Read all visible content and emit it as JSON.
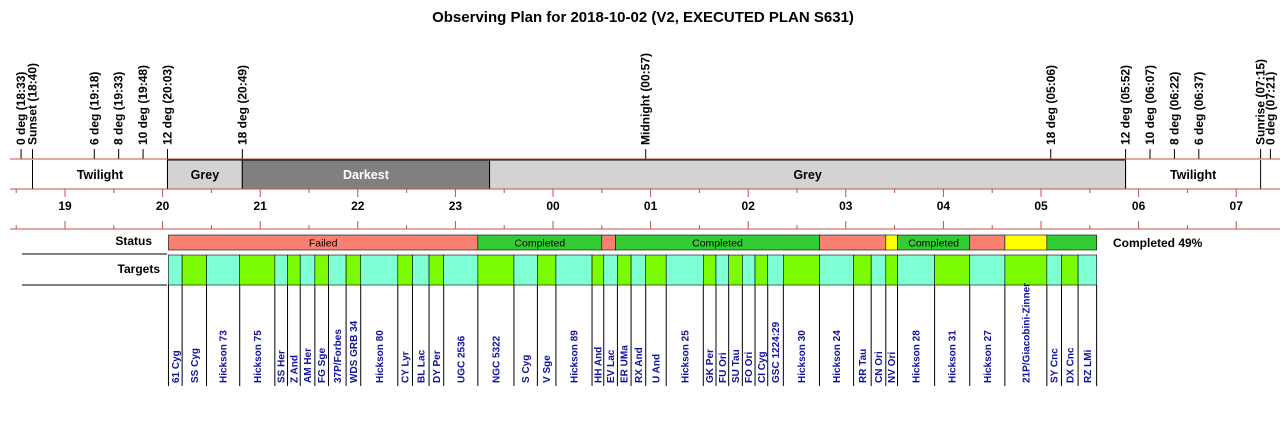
{
  "chart_data": {
    "type": "timeline",
    "title": "Observing Plan for 2018-10-02 (V2, EXECUTED PLAN S631)",
    "axis": {
      "unit": "hour",
      "start": 18.25,
      "end": 31.6
    },
    "hour_ticks": [
      {
        "label": "19",
        "t": 19
      },
      {
        "label": "20",
        "t": 20
      },
      {
        "label": "21",
        "t": 21
      },
      {
        "label": "22",
        "t": 22
      },
      {
        "label": "23",
        "t": 23
      },
      {
        "label": "00",
        "t": 24
      },
      {
        "label": "01",
        "t": 25
      },
      {
        "label": "02",
        "t": 26
      },
      {
        "label": "03",
        "t": 27
      },
      {
        "label": "04",
        "t": 28
      },
      {
        "label": "05",
        "t": 29
      },
      {
        "label": "06",
        "t": 30
      },
      {
        "label": "07",
        "t": 31
      }
    ],
    "events": [
      {
        "label": "0 deg (18:33)",
        "t": 18.55
      },
      {
        "label": "Sunset (18:40)",
        "t": 18.667
      },
      {
        "label": "6 deg (19:18)",
        "t": 19.3
      },
      {
        "label": "8 deg (19:33)",
        "t": 19.55
      },
      {
        "label": "10 deg (19:48)",
        "t": 19.8
      },
      {
        "label": "12 deg (20:03)",
        "t": 20.05
      },
      {
        "label": "18 deg (20:49)",
        "t": 20.817
      },
      {
        "label": "Midnight (00:57)",
        "t": 24.95
      },
      {
        "label": "18 deg (05:06)",
        "t": 29.1
      },
      {
        "label": "12 deg (05:52)",
        "t": 29.867
      },
      {
        "label": "10 deg (06:07)",
        "t": 30.117
      },
      {
        "label": "8 deg (06:22)",
        "t": 30.367
      },
      {
        "label": "6 deg (06:37)",
        "t": 30.617
      },
      {
        "label": "Sunrise (07:15)",
        "t": 31.25
      },
      {
        "label": "0 deg (07:21)",
        "t": 31.35
      }
    ],
    "phases": [
      {
        "label": "",
        "start": 18.25,
        "end": 18.667,
        "color": "#ffffff"
      },
      {
        "label": "Twilight",
        "start": 18.667,
        "end": 20.05,
        "color": "#ffffff"
      },
      {
        "label": "Grey",
        "start": 20.05,
        "end": 20.817,
        "color": "#d3d3d3"
      },
      {
        "label": "Darkest",
        "start": 20.817,
        "end": 23.35,
        "color": "#808080"
      },
      {
        "label": "Grey",
        "start": 23.35,
        "end": 29.867,
        "color": "#d3d3d3"
      },
      {
        "label": "Twilight",
        "start": 29.867,
        "end": 31.25,
        "color": "#ffffff"
      },
      {
        "label": "",
        "start": 31.25,
        "end": 31.6,
        "color": "#ffffff"
      }
    ],
    "status_label": "Status",
    "targets_label": "Targets",
    "status": [
      {
        "label": "Failed",
        "start": 20.06,
        "end": 23.23,
        "color": "#fa8072"
      },
      {
        "label": "Completed",
        "start": 23.23,
        "end": 24.5,
        "color": "#32cd32"
      },
      {
        "label": "",
        "start": 24.5,
        "end": 24.64,
        "color": "#fa8072"
      },
      {
        "label": "Completed",
        "start": 24.64,
        "end": 26.73,
        "color": "#32cd32"
      },
      {
        "label": "",
        "start": 26.73,
        "end": 27.41,
        "color": "#fa8072"
      },
      {
        "label": "",
        "start": 27.41,
        "end": 27.53,
        "color": "#ffff00"
      },
      {
        "label": "Completed",
        "start": 27.53,
        "end": 28.27,
        "color": "#32cd32"
      },
      {
        "label": "",
        "start": 28.27,
        "end": 28.63,
        "color": "#fa8072"
      },
      {
        "label": "",
        "start": 28.63,
        "end": 29.06,
        "color": "#ffff00"
      },
      {
        "label": "",
        "start": 29.06,
        "end": 29.57,
        "color": "#32cd32"
      }
    ],
    "status_summary": "Completed 49%",
    "targets": [
      {
        "name": "61 Cyg",
        "start": 20.06,
        "end": 20.2
      },
      {
        "name": "SS Cyg",
        "start": 20.2,
        "end": 20.45
      },
      {
        "name": "Hickson 73",
        "start": 20.45,
        "end": 20.79
      },
      {
        "name": "Hickson 75",
        "start": 20.79,
        "end": 21.15
      },
      {
        "name": "SS Her",
        "start": 21.15,
        "end": 21.28
      },
      {
        "name": "Z And",
        "start": 21.28,
        "end": 21.41
      },
      {
        "name": "AM Her",
        "start": 21.41,
        "end": 21.56
      },
      {
        "name": "FG Sge",
        "start": 21.56,
        "end": 21.7
      },
      {
        "name": "37P/Forbes",
        "start": 21.7,
        "end": 21.88
      },
      {
        "name": "WDS GRB 34",
        "start": 21.88,
        "end": 22.03
      },
      {
        "name": "Hickson 80",
        "start": 22.03,
        "end": 22.41
      },
      {
        "name": "CY Lyr",
        "start": 22.41,
        "end": 22.56
      },
      {
        "name": "BL Lac",
        "start": 22.56,
        "end": 22.73
      },
      {
        "name": "DY Per",
        "start": 22.73,
        "end": 22.88
      },
      {
        "name": "UGC 2536",
        "start": 22.88,
        "end": 23.23
      },
      {
        "name": "NGC 5322",
        "start": 23.23,
        "end": 23.6
      },
      {
        "name": "S Cyg",
        "start": 23.6,
        "end": 23.84
      },
      {
        "name": "V Sge",
        "start": 23.84,
        "end": 24.03
      },
      {
        "name": "Hickson 89",
        "start": 24.03,
        "end": 24.4
      },
      {
        "name": "HH And",
        "start": 24.4,
        "end": 24.52
      },
      {
        "name": "EV Lac",
        "start": 24.52,
        "end": 24.66
      },
      {
        "name": "ER UMa",
        "start": 24.66,
        "end": 24.8
      },
      {
        "name": "RX And",
        "start": 24.8,
        "end": 24.95
      },
      {
        "name": "U And",
        "start": 24.95,
        "end": 25.16
      },
      {
        "name": "Hickson 25",
        "start": 25.16,
        "end": 25.54
      },
      {
        "name": "GK Per",
        "start": 25.54,
        "end": 25.67
      },
      {
        "name": "FU Ori",
        "start": 25.67,
        "end": 25.8
      },
      {
        "name": "SU Tau",
        "start": 25.8,
        "end": 25.94
      },
      {
        "name": "FO Ori",
        "start": 25.94,
        "end": 26.07
      },
      {
        "name": "CI Cyg",
        "start": 26.07,
        "end": 26.2
      },
      {
        "name": "GSC 1224:29",
        "start": 26.2,
        "end": 26.36
      },
      {
        "name": "Hickson 30",
        "start": 26.36,
        "end": 26.73
      },
      {
        "name": "Hickson 24",
        "start": 26.73,
        "end": 27.08
      },
      {
        "name": "RR Tau",
        "start": 27.08,
        "end": 27.26
      },
      {
        "name": "CN Ori",
        "start": 27.26,
        "end": 27.41
      },
      {
        "name": "NV Ori",
        "start": 27.41,
        "end": 27.53
      },
      {
        "name": "Hickson 28",
        "start": 27.53,
        "end": 27.91
      },
      {
        "name": "Hickson 31",
        "start": 27.91,
        "end": 28.27
      },
      {
        "name": "Hickson 27",
        "start": 28.27,
        "end": 28.63
      },
      {
        "name": "21P/Giacobini-Zinner",
        "start": 28.63,
        "end": 29.06
      },
      {
        "name": "SY Cnc",
        "start": 29.06,
        "end": 29.21
      },
      {
        "name": "DX Cnc",
        "start": 29.21,
        "end": 29.38
      },
      {
        "name": "RZ LMi",
        "start": 29.38,
        "end": 29.57
      }
    ],
    "target_colors": [
      "#7fffd4",
      "#7cfc00"
    ]
  }
}
